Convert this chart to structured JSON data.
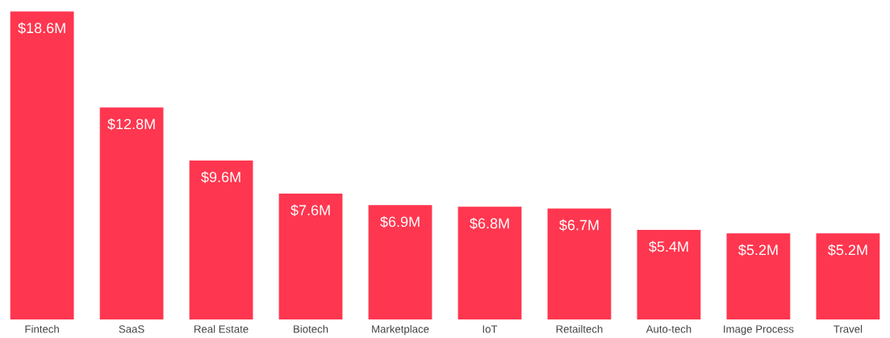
{
  "chart_data": {
    "type": "bar",
    "categories": [
      "Fintech",
      "SaaS",
      "Real Estate",
      "Biotech",
      "Marketplace",
      "IoT",
      "Retailtech",
      "Auto-tech",
      "Image Process",
      "Travel"
    ],
    "values": [
      18.6,
      12.8,
      9.6,
      7.6,
      6.9,
      6.8,
      6.7,
      5.4,
      5.2,
      5.2
    ],
    "value_labels": [
      "$18.6M",
      "$12.8M",
      "$9.6M",
      "$7.6M",
      "$6.9M",
      "$6.8M",
      "$6.7M",
      "$5.4M",
      "$5.2M",
      "$5.2M"
    ],
    "color": "#ff364f",
    "grid": false,
    "legend": false
  }
}
